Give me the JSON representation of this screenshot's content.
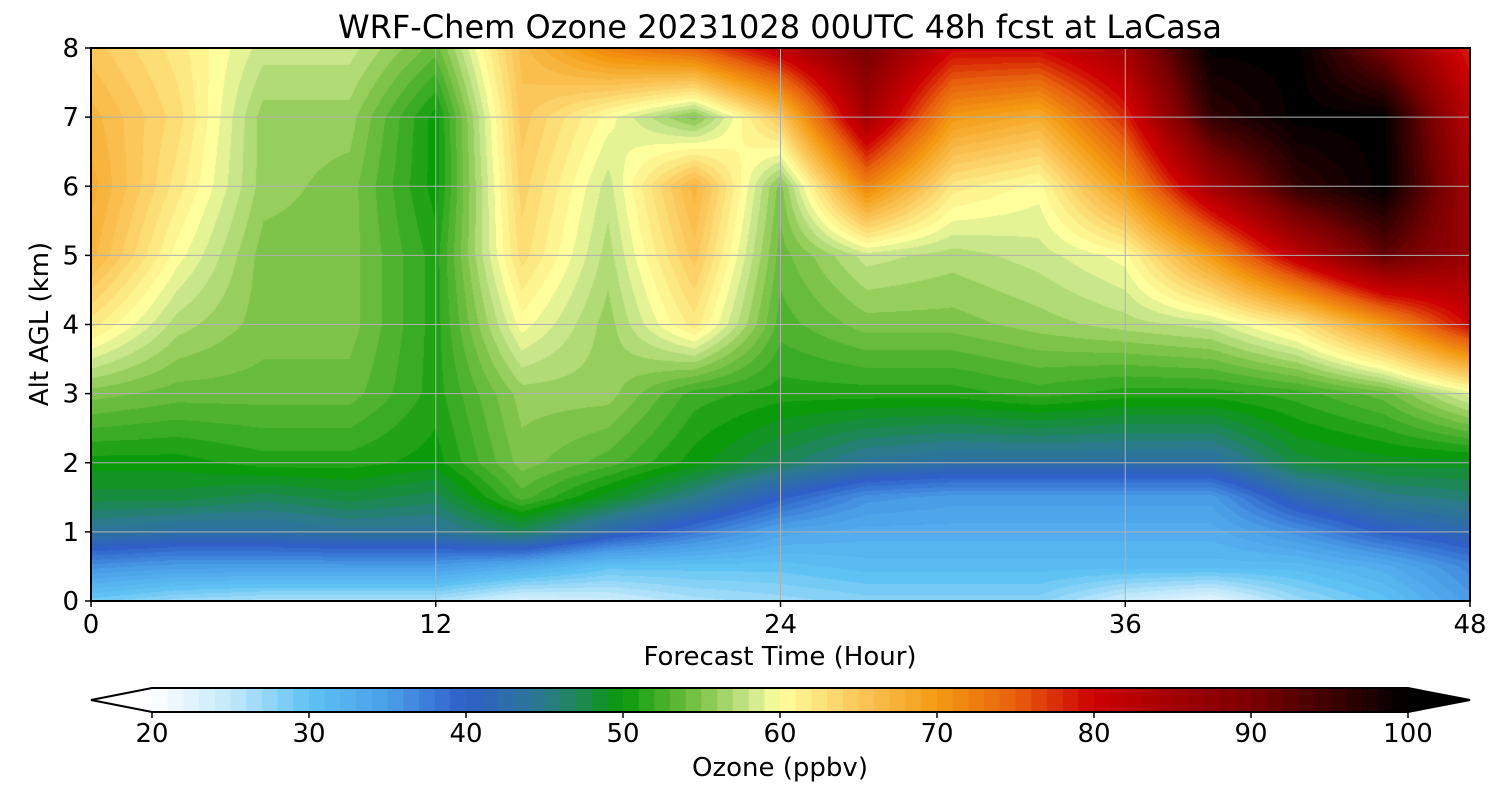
{
  "chart_data": {
    "type": "heatmap",
    "title": "WRF-Chem Ozone  20231028 00UTC 48h fcst at LaCasa",
    "xlabel": "Forecast Time (Hour)",
    "ylabel": "Alt AGL (km)",
    "xlim": [
      0,
      48
    ],
    "ylim": [
      0,
      8
    ],
    "x_ticks": [
      0,
      12,
      24,
      36,
      48
    ],
    "y_ticks": [
      0,
      1,
      2,
      3,
      4,
      5,
      6,
      7,
      8
    ],
    "grid": true,
    "x": [
      0,
      3,
      6,
      9,
      12,
      15,
      18,
      21,
      24,
      27,
      30,
      33,
      36,
      39,
      42,
      45,
      48
    ],
    "y": [
      0,
      0.5,
      1,
      1.5,
      2,
      3,
      4,
      5,
      6,
      7,
      8
    ],
    "z": [
      [
        29,
        27,
        26,
        26,
        26,
        23,
        24,
        26,
        27,
        28,
        28,
        28,
        24,
        22,
        27,
        30,
        35
      ],
      [
        36,
        35,
        35,
        35,
        35,
        33,
        30,
        30,
        30,
        31,
        31,
        31,
        31,
        31,
        31,
        33,
        37
      ],
      [
        44,
        43,
        43,
        44,
        44,
        47,
        42,
        38,
        34,
        33,
        33,
        33,
        33,
        33,
        36,
        40,
        42
      ],
      [
        48,
        48,
        47,
        48,
        47,
        53,
        49,
        45,
        40,
        36,
        35,
        35,
        35,
        35,
        42,
        45,
        46
      ],
      [
        50,
        50,
        51,
        51,
        50,
        55,
        53,
        50,
        47,
        44,
        43,
        43,
        43,
        43,
        48,
        49,
        49
      ],
      [
        55,
        54,
        54,
        54,
        51,
        56,
        56,
        52,
        51,
        51,
        51,
        52,
        51,
        51,
        52,
        54,
        59
      ],
      [
        62,
        57,
        55,
        55,
        51,
        60,
        56,
        62,
        53,
        55,
        55,
        56,
        57,
        58,
        62,
        70,
        80
      ],
      [
        67,
        60,
        55,
        55,
        51,
        63,
        57,
        65,
        54,
        58,
        57,
        58,
        60,
        70,
        82,
        92,
        86
      ],
      [
        68,
        62,
        56,
        55,
        50,
        64,
        58,
        67,
        55,
        72,
        62,
        60,
        70,
        85,
        96,
        100,
        85
      ],
      [
        67,
        63,
        56,
        56,
        50,
        65,
        60,
        55,
        65,
        85,
        70,
        68,
        78,
        96,
        100,
        100,
        82
      ],
      [
        65,
        62,
        58,
        58,
        54,
        66,
        72,
        75,
        82,
        90,
        80,
        80,
        85,
        100,
        100,
        90,
        78
      ]
    ],
    "colorbar": {
      "label": "Ozone  (ppbv)",
      "min": 20,
      "max": 100,
      "ticks": [
        20,
        30,
        40,
        50,
        60,
        70,
        80,
        90,
        100
      ],
      "extend": "both",
      "stops": [
        [
          20,
          "#ffffff"
        ],
        [
          25,
          "#c2e9fb"
        ],
        [
          30,
          "#5ec2f4"
        ],
        [
          35,
          "#4a9ee8"
        ],
        [
          40,
          "#2f5fc8"
        ],
        [
          45,
          "#2b7a8c"
        ],
        [
          50,
          "#0a9a0a"
        ],
        [
          55,
          "#7fc44a"
        ],
        [
          58,
          "#c8e68a"
        ],
        [
          60,
          "#ffff9e"
        ],
        [
          65,
          "#fbc75a"
        ],
        [
          70,
          "#f49a12"
        ],
        [
          75,
          "#e8600d"
        ],
        [
          80,
          "#cc0000"
        ],
        [
          90,
          "#7a0000"
        ],
        [
          100,
          "#000000"
        ]
      ]
    }
  }
}
